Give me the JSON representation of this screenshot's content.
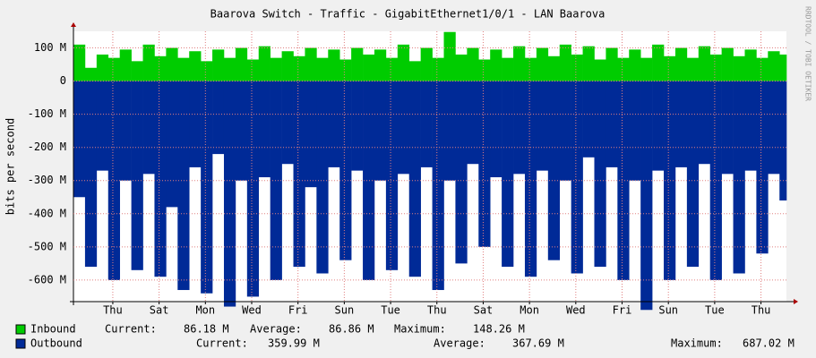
{
  "chart_data": {
    "type": "area",
    "title": "Baarova Switch - Traffic - GigabitEthernet1/0/1 - LAN Baarova",
    "y_label": "bits per second",
    "side_text": "RRDTOOL / TOBI OETIKER",
    "grid": true,
    "xlim": [
      0,
      30.8
    ],
    "xticks": [
      {
        "value": 1.7,
        "label": "Thu"
      },
      {
        "value": 3.7,
        "label": "Sat"
      },
      {
        "value": 5.7,
        "label": "Mon"
      },
      {
        "value": 7.7,
        "label": "Wed"
      },
      {
        "value": 9.7,
        "label": "Fri"
      },
      {
        "value": 11.7,
        "label": "Sun"
      },
      {
        "value": 13.7,
        "label": "Tue"
      },
      {
        "value": 15.7,
        "label": "Thu"
      },
      {
        "value": 17.7,
        "label": "Sat"
      },
      {
        "value": 19.7,
        "label": "Mon"
      },
      {
        "value": 21.7,
        "label": "Wed"
      },
      {
        "value": 23.7,
        "label": "Fri"
      },
      {
        "value": 25.7,
        "label": "Sun"
      },
      {
        "value": 27.7,
        "label": "Tue"
      },
      {
        "value": 29.7,
        "label": "Thu"
      }
    ],
    "ylim": [
      -665,
      150
    ],
    "yticks": [
      {
        "value": 100,
        "label": "100 M"
      },
      0,
      {
        "value": -100,
        "label": "-100 M"
      },
      {
        "value": -200,
        "label": "-200 M"
      },
      {
        "value": -300,
        "label": "-300 M"
      },
      {
        "value": -400,
        "label": "-400 M"
      },
      {
        "value": -500,
        "label": "-500 M"
      },
      {
        "value": -600,
        "label": "-600 M"
      }
    ],
    "x": [
      0,
      0.5,
      1,
      1.5,
      2,
      2.5,
      3,
      3.5,
      4,
      4.5,
      5,
      5.5,
      6,
      6.5,
      7,
      7.5,
      8,
      8.5,
      9,
      9.5,
      10,
      10.5,
      11,
      11.5,
      12,
      12.5,
      13,
      13.5,
      14,
      14.5,
      15,
      15.5,
      16,
      16.5,
      17,
      17.5,
      18,
      18.5,
      19,
      19.5,
      20,
      20.5,
      21,
      21.5,
      22,
      22.5,
      23,
      23.5,
      24,
      24.5,
      25,
      25.5,
      26,
      26.5,
      27,
      27.5,
      28,
      28.5,
      29,
      29.5,
      30,
      30.5
    ],
    "series": [
      {
        "name": "Inbound",
        "color": "#00cc00",
        "values": [
          110,
          40,
          80,
          70,
          95,
          60,
          110,
          75,
          100,
          70,
          90,
          60,
          95,
          70,
          100,
          65,
          105,
          70,
          90,
          75,
          100,
          70,
          95,
          65,
          100,
          80,
          95,
          70,
          110,
          60,
          100,
          70,
          148,
          80,
          100,
          65,
          95,
          70,
          105,
          70,
          100,
          75,
          110,
          80,
          105,
          65,
          100,
          70,
          95,
          70,
          110,
          75,
          100,
          70,
          105,
          80,
          100,
          75,
          95,
          70,
          90,
          80
        ],
        "stats": [
          {
            "name": "Current:",
            "value": 86.18,
            "label": "86.18 M"
          },
          {
            "name": "Average:",
            "value": 86.86,
            "label": "86.86 M"
          },
          {
            "name": "Maximum:",
            "value": 148.26,
            "label": "148.26 M"
          }
        ]
      },
      {
        "name": "Outbound",
        "color": "#002a97",
        "values": [
          -350,
          -560,
          -270,
          -600,
          -300,
          -570,
          -280,
          -590,
          -380,
          -630,
          -260,
          -640,
          -220,
          -680,
          -300,
          -650,
          -290,
          -600,
          -250,
          -560,
          -320,
          -580,
          -260,
          -540,
          -270,
          -600,
          -300,
          -570,
          -280,
          -590,
          -260,
          -630,
          -300,
          -550,
          -250,
          -500,
          -290,
          -560,
          -280,
          -590,
          -270,
          -540,
          -300,
          -580,
          -230,
          -560,
          -260,
          -600,
          -300,
          -690,
          -270,
          -600,
          -260,
          -560,
          -250,
          -600,
          -280,
          -580,
          -270,
          -520,
          -280,
          -360
        ],
        "stats": [
          {
            "name": "Current:",
            "value": 359.99,
            "label": "359.99 M"
          },
          {
            "name": "Average:",
            "value": 367.69,
            "label": "367.69 M"
          },
          {
            "name": "Maximum:",
            "value": 687.02,
            "label": "687.02 M"
          }
        ]
      }
    ]
  }
}
